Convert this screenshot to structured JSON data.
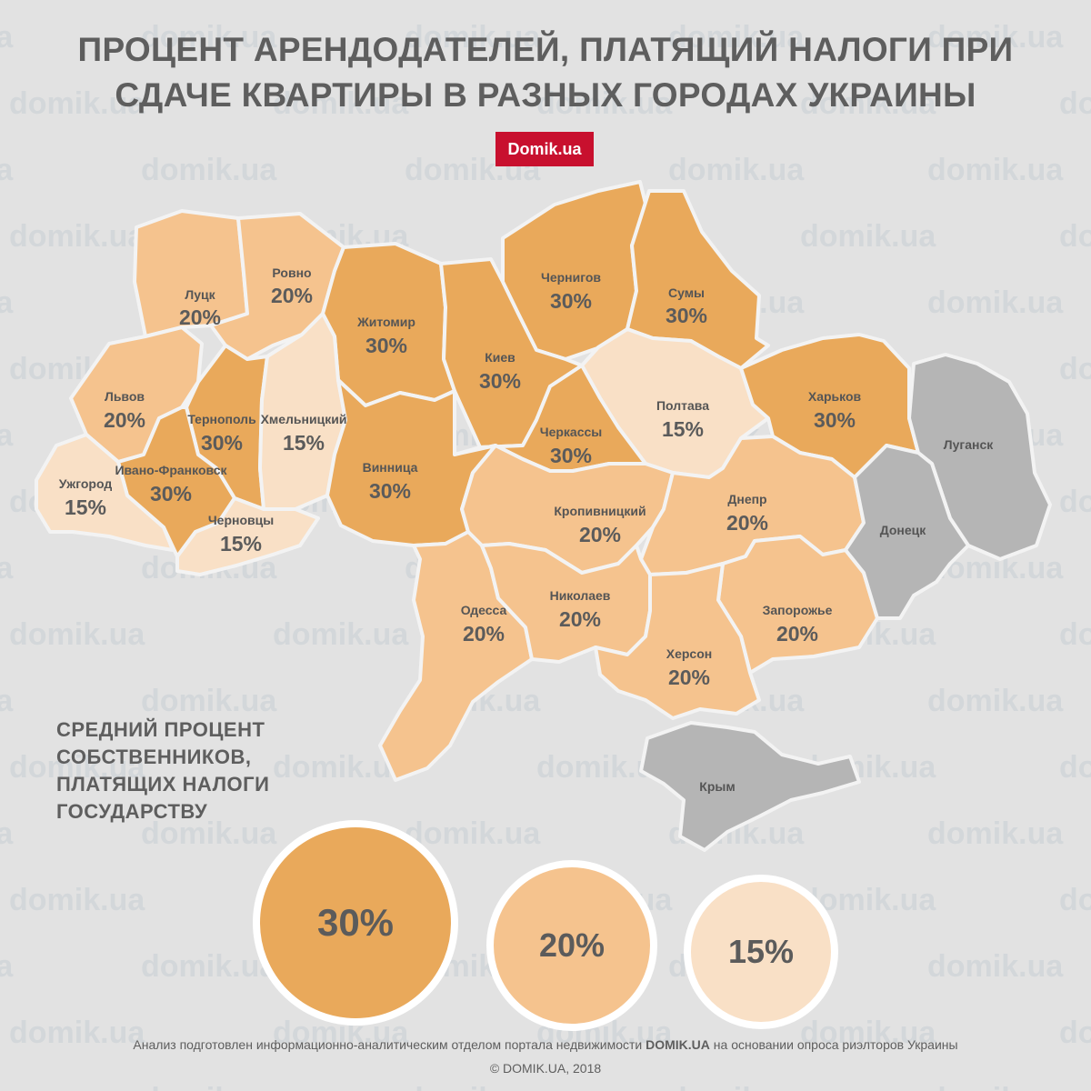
{
  "title": {
    "line1": "ПРОЦЕНТ АРЕНДОДАТЕЛЕЙ, ПЛАТЯЩИЙ НАЛОГИ ПРИ",
    "line2": "СДАЧЕ КВАРТИРЫ В РАЗНЫХ ГОРОДАХ УКРАИНЫ"
  },
  "brand": "Domik.ua",
  "watermark": "domik.ua",
  "colors": {
    "pct30": "#e9a95b",
    "pct20": "#f5c38e",
    "pct15": "#f9e0c6",
    "no_data": "#b5b5b5",
    "brand": "#c8102e"
  },
  "regions": [
    {
      "name": "Луцк",
      "value": "20%"
    },
    {
      "name": "Ровно",
      "value": "20%"
    },
    {
      "name": "Житомир",
      "value": "30%"
    },
    {
      "name": "Чернигов",
      "value": "30%"
    },
    {
      "name": "Сумы",
      "value": "30%"
    },
    {
      "name": "Киев",
      "value": "30%"
    },
    {
      "name": "Львов",
      "value": "20%"
    },
    {
      "name": "Тернополь",
      "value": "30%"
    },
    {
      "name": "Хмельницкий",
      "value": "15%"
    },
    {
      "name": "Полтава",
      "value": "15%"
    },
    {
      "name": "Харьков",
      "value": "30%"
    },
    {
      "name": "Черкассы",
      "value": "30%"
    },
    {
      "name": "Ивано-Франковск",
      "value": "30%"
    },
    {
      "name": "Винница",
      "value": "30%"
    },
    {
      "name": "Ужгород",
      "value": "15%"
    },
    {
      "name": "Черновцы",
      "value": "15%"
    },
    {
      "name": "Кропивницкий",
      "value": "20%"
    },
    {
      "name": "Днепр",
      "value": "20%"
    },
    {
      "name": "Одесса",
      "value": "20%"
    },
    {
      "name": "Николаев",
      "value": "20%"
    },
    {
      "name": "Запорожье",
      "value": "20%"
    },
    {
      "name": "Херсон",
      "value": "20%"
    },
    {
      "name": "Луганск",
      "value": ""
    },
    {
      "name": "Донецк",
      "value": ""
    },
    {
      "name": "Крым",
      "value": ""
    }
  ],
  "legend": {
    "title": [
      "СРЕДНИЙ ПРОЦЕНТ",
      "СОБСТВЕННИКОВ,",
      "ПЛАТЯЩИХ НАЛОГИ",
      "ГОСУДАРСТВУ"
    ],
    "bubbles": [
      "30%",
      "20%",
      "15%"
    ]
  },
  "footer": {
    "pre": "Анализ подготовлен информационно-аналитическим отделом портала недвижимости ",
    "strong": "DOMIK.UA",
    "post": " на основании опроса риэлторов Украины",
    "copyright": "©  DOMIK.UA, 2018"
  }
}
